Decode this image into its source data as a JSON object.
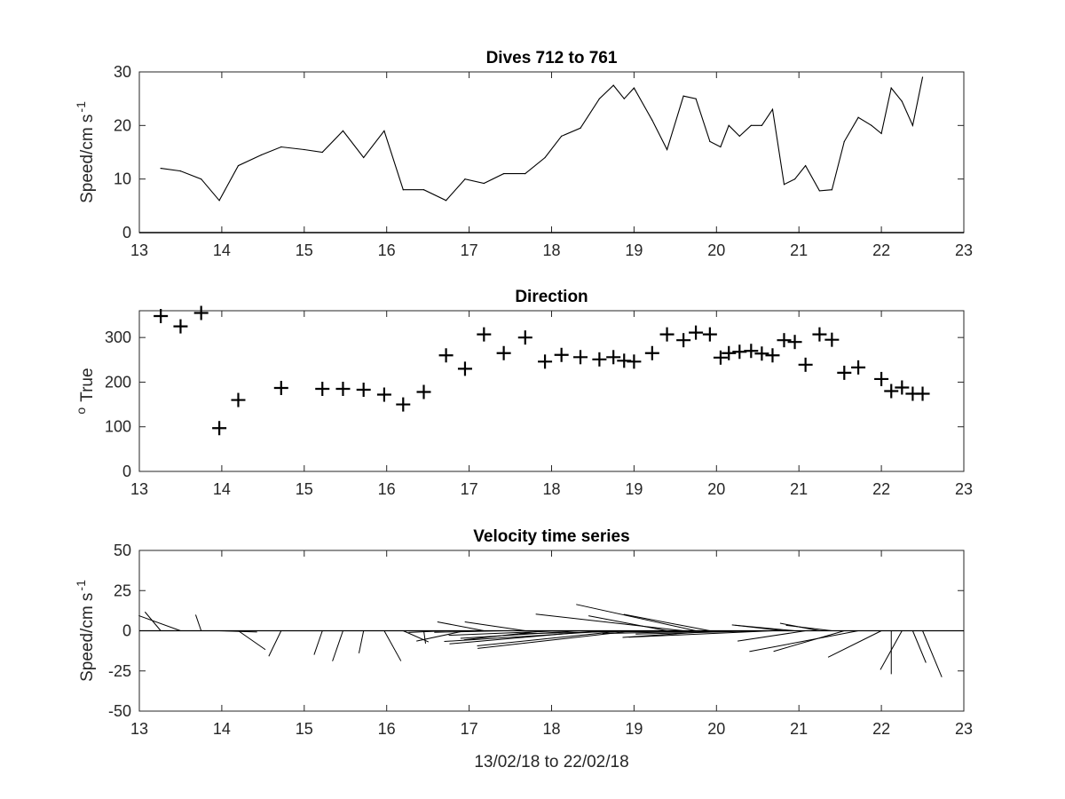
{
  "chart_data": [
    {
      "type": "line",
      "title": "Dives 712 to 761",
      "xlabel": "",
      "ylabel": "Speed/cm s",
      "ylabel_superscript": "-1",
      "xlim": [
        13,
        23
      ],
      "ylim": [
        0,
        30
      ],
      "xticks": [
        "13",
        "14",
        "15",
        "16",
        "17",
        "18",
        "19",
        "20",
        "21",
        "22",
        "23"
      ],
      "yticks": [
        "0",
        "10",
        "20",
        "30"
      ],
      "grid": false,
      "series": [
        {
          "x": [
            13.26,
            13.5,
            13.75,
            13.97,
            14.2,
            14.48,
            14.72,
            15.0,
            15.22,
            15.47,
            15.72,
            15.97,
            16.2,
            16.45,
            16.72,
            16.95,
            17.18,
            17.42,
            17.68,
            17.92,
            18.12,
            18.35,
            18.58,
            18.75,
            18.88,
            19.0,
            19.22,
            19.4,
            19.6,
            19.75,
            19.92,
            20.05,
            20.15,
            20.28,
            20.42,
            20.55,
            20.68,
            20.82,
            20.95,
            21.08,
            21.25,
            21.4,
            21.55,
            21.72,
            21.88,
            22.0,
            22.12,
            22.25,
            22.38,
            22.5
          ],
          "values": [
            12,
            11.5,
            10,
            6,
            12.5,
            14.5,
            16,
            15.5,
            15,
            19,
            14,
            19,
            8,
            8,
            6,
            10,
            9.2,
            11,
            11,
            14,
            18,
            19.5,
            25,
            27.5,
            25,
            27,
            21,
            15.5,
            25.5,
            25,
            17,
            16,
            20,
            18,
            20,
            20,
            23,
            9,
            10,
            12.5,
            7.8,
            8,
            17,
            21.5,
            20,
            18.5,
            27,
            24.5,
            20,
            29
          ]
        }
      ]
    },
    {
      "type": "scatter",
      "title": "Direction",
      "xlabel": "",
      "ylabel": "True",
      "ylabel_superscript": "o",
      "xlim": [
        13,
        23
      ],
      "ylim": [
        0,
        360
      ],
      "xticks": [
        "13",
        "14",
        "15",
        "16",
        "17",
        "18",
        "19",
        "20",
        "21",
        "22",
        "23"
      ],
      "yticks": [
        "0",
        "100",
        "200",
        "300"
      ],
      "grid": false,
      "marker": "+",
      "series": [
        {
          "x": [
            13.26,
            13.5,
            13.75,
            13.97,
            14.2,
            14.72,
            15.22,
            15.47,
            15.72,
            15.97,
            16.2,
            16.45,
            16.72,
            16.95,
            17.18,
            17.42,
            17.68,
            17.92,
            18.12,
            18.35,
            18.58,
            18.75,
            18.88,
            19.0,
            19.22,
            19.4,
            19.6,
            19.75,
            19.92,
            20.05,
            20.15,
            20.28,
            20.42,
            20.55,
            20.68,
            20.82,
            20.95,
            21.08,
            21.25,
            21.4,
            21.55,
            21.72,
            22.0,
            22.12,
            22.25,
            22.38,
            22.5
          ],
          "values": [
            348,
            325,
            355,
            97,
            160,
            187,
            185,
            185,
            183,
            172,
            150,
            178,
            260,
            230,
            307,
            265,
            300,
            246,
            261,
            256,
            251,
            256,
            248,
            246,
            265,
            307,
            294,
            311,
            307,
            255,
            265,
            268,
            270,
            264,
            260,
            294,
            290,
            239,
            307,
            295,
            221,
            233,
            207,
            180,
            188,
            174,
            174
          ]
        }
      ]
    },
    {
      "type": "quiver",
      "title": "Velocity time series",
      "xlabel": "13/02/18 to 22/02/18",
      "ylabel": "Speed/cm s",
      "ylabel_superscript": "-1",
      "xlim": [
        13,
        23
      ],
      "ylim": [
        -50,
        50
      ],
      "xticks": [
        "13",
        "14",
        "15",
        "16",
        "17",
        "18",
        "19",
        "20",
        "21",
        "22",
        "23"
      ],
      "yticks": [
        "-50",
        "-25",
        "0",
        "25",
        "50"
      ],
      "grid": false,
      "series": [
        {
          "x": [
            13.26,
            13.5,
            13.75,
            13.97,
            14.2,
            14.72,
            15.22,
            15.47,
            15.72,
            15.97,
            16.2,
            16.45,
            16.72,
            16.95,
            17.18,
            17.42,
            17.68,
            17.92,
            18.12,
            18.35,
            18.58,
            18.75,
            18.88,
            19.0,
            19.22,
            19.4,
            19.6,
            19.75,
            19.92,
            20.05,
            20.15,
            20.28,
            20.42,
            20.55,
            20.68,
            20.82,
            20.95,
            21.08,
            21.25,
            21.4,
            21.55,
            21.72,
            22.0,
            22.12,
            22.25,
            22.38,
            22.5
          ],
          "speed": [
            12,
            11.5,
            10,
            6,
            12.5,
            16,
            15,
            19,
            14,
            19,
            8,
            8,
            6,
            10,
            9.2,
            11,
            11,
            14,
            18,
            19.5,
            25,
            27.5,
            25,
            27,
            21,
            15.5,
            25.5,
            25,
            17,
            16,
            20,
            18,
            20,
            20,
            23,
            9,
            10,
            12.5,
            7.8,
            8,
            17,
            21.5,
            18.5,
            27,
            24.5,
            20,
            29
          ],
          "direction": [
            348,
            325,
            355,
            97,
            160,
            187,
            185,
            185,
            183,
            172,
            150,
            178,
            260,
            230,
            307,
            265,
            300,
            246,
            261,
            256,
            251,
            256,
            248,
            246,
            265,
            307,
            294,
            311,
            307,
            255,
            265,
            268,
            270,
            264,
            260,
            294,
            290,
            239,
            307,
            295,
            221,
            233,
            207,
            180,
            188,
            174,
            174
          ]
        }
      ]
    }
  ]
}
